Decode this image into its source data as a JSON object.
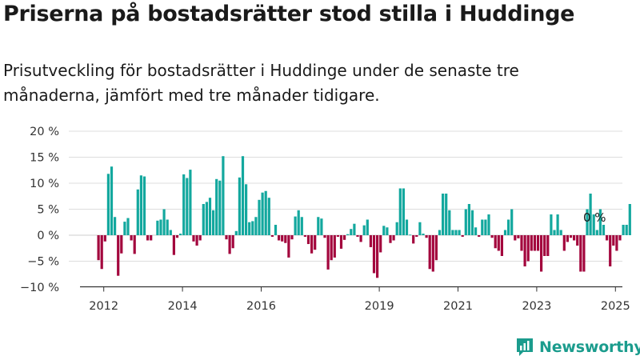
{
  "title": "Priserna på bostadsrätter stod stilla i Huddinge",
  "subtitle": "Prisutveckling för bostadsrätter i Huddinge under de senaste tre månaderna, jämfört med tre månader tidigare.",
  "brand": "Newsworthy",
  "colors": {
    "positive": "#13a89e",
    "negative": "#a3053d",
    "grid": "#dddddd",
    "axis": "#333333"
  },
  "chart_data": {
    "type": "bar",
    "xlabel": "",
    "ylabel": "",
    "ylim": [
      -10,
      20
    ],
    "y_ticks": [
      "20 %",
      "15 %",
      "10 %",
      "5 %",
      "0 %",
      "−5 %",
      "−10 %"
    ],
    "x_ticks": [
      "2012",
      "2014",
      "2016",
      "2019",
      "2021",
      "2023",
      "2025"
    ],
    "annotation": "0 %",
    "series": [
      {
        "start": "2011-11",
        "values": [
          -4.8,
          -6.5,
          -1.2,
          11.8,
          13.2,
          3.5,
          -7.8,
          -3.5,
          2.6,
          3.3,
          -1,
          -3.6,
          8.8,
          11.5,
          11.3,
          -1,
          -1,
          0,
          2.8,
          3,
          5,
          3,
          1,
          -3.8,
          -0.5,
          0.3,
          11.7,
          11,
          12.6,
          -1.2,
          -2,
          -1,
          6,
          6.4,
          7.2,
          4.8,
          10.8,
          10.5,
          15.2,
          -0.8,
          -3.6,
          -2.5,
          0.8,
          11.1,
          15.2,
          9.8,
          2.5,
          2.7,
          3.5,
          6.8,
          8.2,
          8.5,
          7.2,
          -0.3,
          2,
          -1,
          -1.2,
          -1.5,
          -4.3,
          -0.8,
          3.6,
          4.8,
          3.5,
          -0.3,
          -1.7,
          -3.5,
          -2.8,
          3.5,
          3.2,
          -0.5,
          -6.6,
          -4.8,
          -4.3,
          -0.3,
          -2.6,
          -0.9,
          0.2,
          1.2,
          2.2,
          -0.3,
          -1.3,
          1.9,
          3,
          -2.3,
          -7.3,
          -8.2,
          -3.3,
          1.8,
          1.5,
          -1.5,
          -1,
          2.5,
          9,
          9,
          3,
          0.1,
          -1.6,
          -0.3,
          2.5,
          0.3,
          -0.5,
          -6.5,
          -7,
          -4.8,
          1,
          8,
          8,
          4.8,
          1,
          1,
          1,
          -0.3,
          5,
          6,
          4.8,
          1.5,
          -0.3,
          3,
          3,
          4,
          -0.5,
          -2.5,
          -3,
          -4,
          1,
          3,
          5,
          -1,
          -0.6,
          -3,
          -6,
          -5,
          -3,
          -3,
          -3,
          -7,
          -4,
          -4,
          4,
          1,
          4,
          1,
          -3,
          -1.3,
          -0.5,
          -1,
          -2,
          -7,
          -7,
          5,
          8,
          4,
          1,
          5,
          2,
          -1,
          -6,
          -2,
          -3,
          -1,
          2,
          2,
          6
        ]
      }
    ]
  }
}
